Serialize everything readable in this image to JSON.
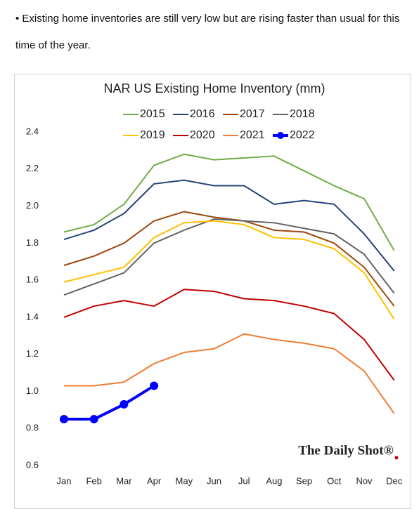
{
  "text": "• Existing home inventories are still very low but are rising faster than usual for this time of the year.",
  "chart_data": {
    "type": "line",
    "title": "NAR US Existing Home Inventory (mm)",
    "categories": [
      "Jan",
      "Feb",
      "Mar",
      "Apr",
      "May",
      "Jun",
      "Jul",
      "Aug",
      "Sep",
      "Oct",
      "Nov",
      "Dec"
    ],
    "series": [
      {
        "name": "2015",
        "color": "#70ad47",
        "values": [
          1.86,
          1.9,
          2.01,
          2.22,
          2.28,
          2.25,
          2.26,
          2.27,
          2.19,
          2.11,
          2.04,
          1.76
        ]
      },
      {
        "name": "2016",
        "color": "#264478",
        "values": [
          1.82,
          1.87,
          1.96,
          2.12,
          2.14,
          2.11,
          2.11,
          2.01,
          2.03,
          2.01,
          1.85,
          1.65
        ]
      },
      {
        "name": "2017",
        "color": "#9e480e",
        "values": [
          1.68,
          1.73,
          1.8,
          1.92,
          1.97,
          1.94,
          1.92,
          1.87,
          1.86,
          1.8,
          1.67,
          1.46
        ]
      },
      {
        "name": "2018",
        "color": "#636363",
        "values": [
          1.52,
          1.58,
          1.64,
          1.8,
          1.87,
          1.93,
          1.92,
          1.91,
          1.88,
          1.85,
          1.74,
          1.53
        ]
      },
      {
        "name": "2019",
        "color": "#ffc000",
        "values": [
          1.59,
          1.63,
          1.67,
          1.83,
          1.91,
          1.92,
          1.9,
          1.83,
          1.82,
          1.77,
          1.64,
          1.39
        ]
      },
      {
        "name": "2020",
        "color": "#c00000",
        "values": [
          1.4,
          1.46,
          1.49,
          1.46,
          1.55,
          1.54,
          1.5,
          1.49,
          1.46,
          1.42,
          1.28,
          1.06
        ]
      },
      {
        "name": "2021",
        "color": "#ed7d31",
        "values": [
          1.03,
          1.03,
          1.05,
          1.15,
          1.21,
          1.23,
          1.31,
          1.28,
          1.26,
          1.23,
          1.11,
          0.88
        ]
      },
      {
        "name": "2022",
        "color": "#0000ff",
        "markers": true,
        "values": [
          0.85,
          0.85,
          0.93,
          1.03,
          null,
          null,
          null,
          null,
          null,
          null,
          null,
          null
        ]
      }
    ],
    "ylim": [
      0.6,
      2.4
    ],
    "yticks": [
      0.6,
      0.8,
      {
        "value": 1,
        "label": "1.0"
      },
      1.2,
      1.4,
      1.6,
      1.8,
      {
        "value": 2,
        "label": "2.0"
      },
      2.2,
      2.4
    ],
    "grid": false,
    "legend": "top",
    "annotations": [
      "The Daily Shot®"
    ]
  }
}
